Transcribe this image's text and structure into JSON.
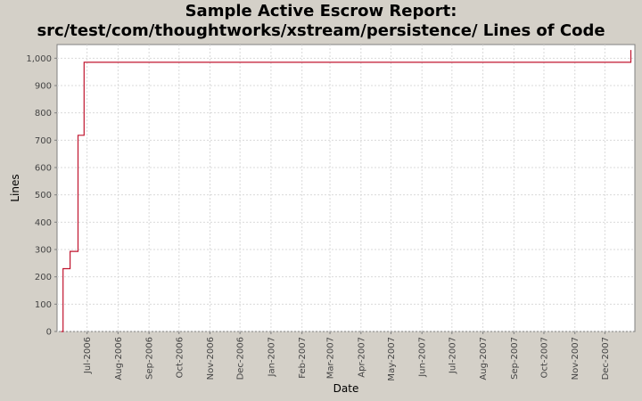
{
  "chart_data": {
    "type": "line",
    "title_line1": "Sample Active Escrow Report:",
    "title_line2": "src/test/com/thoughtworks/xstream/persistence/ Lines of Code",
    "xlabel": "Date",
    "ylabel": "Lines",
    "ylim": [
      0,
      1050
    ],
    "yticks": [
      0,
      100,
      200,
      300,
      400,
      500,
      600,
      700,
      800,
      900,
      1000
    ],
    "ytick_labels": [
      "0",
      "100",
      "200",
      "300",
      "400",
      "500",
      "600",
      "700",
      "800",
      "900",
      "1,000"
    ],
    "xlim": [
      "2006-06-01",
      "2007-12-31"
    ],
    "xticks": [
      "2006-07-01",
      "2006-08-01",
      "2006-09-01",
      "2006-10-01",
      "2006-11-01",
      "2006-12-01",
      "2007-01-01",
      "2007-02-01",
      "2007-03-01",
      "2007-04-01",
      "2007-05-01",
      "2007-06-01",
      "2007-07-01",
      "2007-08-01",
      "2007-09-01",
      "2007-10-01",
      "2007-11-01",
      "2007-12-01"
    ],
    "xtick_labels": [
      "Jul-2006",
      "Aug-2006",
      "Sep-2006",
      "Oct-2006",
      "Nov-2006",
      "Dec-2006",
      "Jan-2007",
      "Feb-2007",
      "Mar-2007",
      "Apr-2007",
      "May-2007",
      "Jun-2007",
      "Jul-2007",
      "Aug-2007",
      "Sep-2007",
      "Oct-2007",
      "Nov-2007",
      "Dec-2007"
    ],
    "grid": true,
    "series": [
      {
        "color": "#c0142e",
        "step": true,
        "x": [
          "2006-06-05",
          "2006-06-07",
          "2006-06-14",
          "2006-06-22",
          "2006-06-28",
          "2007-12-27"
        ],
        "y": [
          0,
          230,
          293,
          718,
          985,
          1030
        ]
      }
    ]
  }
}
